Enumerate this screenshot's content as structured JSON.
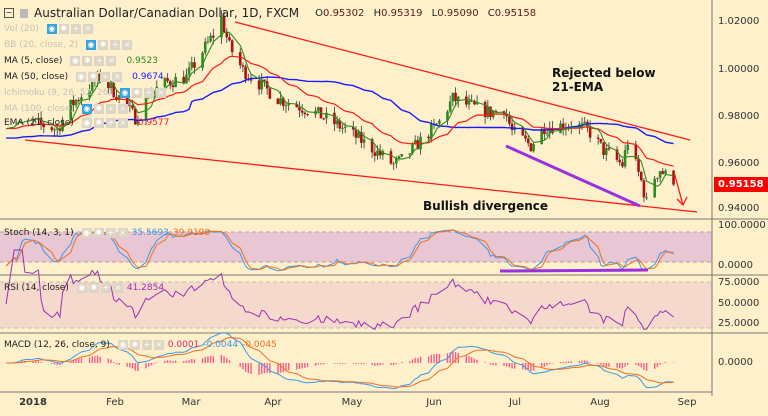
{
  "header": {
    "symbol": "Australian Dollar/Canadian Dollar, 1D, FXCM",
    "open": "0.95302",
    "high": "0.95319",
    "low": "0.95090",
    "close": "0.95158",
    "o_label": "O",
    "h_label": "H",
    "l_label": "L",
    "c_label": "C"
  },
  "legend": [
    {
      "label": "Vol (20)",
      "value": "",
      "faded": true
    },
    {
      "label": "BB (20, close, 2)",
      "value": "",
      "faded": true
    },
    {
      "label": "MA (5, close)",
      "value": "0.9523",
      "color": "#2e8b1e"
    },
    {
      "label": "MA (50, close)",
      "value": "0.9674",
      "color": "#1a1aff"
    },
    {
      "label": "Ichimoku (9, 26, 52, 26)",
      "value": "",
      "faded": true
    },
    {
      "label": "MA (100, close)",
      "value": "",
      "faded": true
    },
    {
      "label": "EMA (21, close)",
      "value": "0.9577",
      "color": "#ff1a1a"
    }
  ],
  "indicators": {
    "stoch": {
      "label": "Stoch (14, 3, 1)",
      "k": "35.5693",
      "d": "39.0190",
      "axis": [
        "100.0000",
        "0.0000"
      ]
    },
    "rsi": {
      "label": "RSI (14, close)",
      "value": "41.2854",
      "axis": [
        "75.0000",
        "50.0000",
        "25.0000"
      ]
    },
    "macd": {
      "label": "MACD (12, 26, close, 9)",
      "hist": "0.0001",
      "macd": "-0.0044",
      "signal": "-0.0045",
      "axis": [
        "0.0000"
      ]
    }
  },
  "annotations": {
    "rejected": "Rejected below",
    "ema": "21-EMA",
    "bullish": "Bullish divergence"
  },
  "price_axis": [
    "1.02000",
    "1.00000",
    "0.98000",
    "0.96000",
    "0.94000"
  ],
  "last_price": "0.95158",
  "x_axis": [
    "2018",
    "Feb",
    "Mar",
    "Apr",
    "May",
    "Jun",
    "Jul",
    "Aug",
    "Sep"
  ],
  "colors": {
    "up": "#2e8b1e",
    "down": "#b01010",
    "ma5": "#2e8b1e",
    "ma50": "#1a1aff",
    "ema21": "#ff1a1a",
    "trend": "#ff1a1a",
    "divergence": "#9b30e0"
  },
  "chart_data": {
    "type": "candlestick",
    "title": "Australian Dollar/Canadian Dollar, 1D, FXCM",
    "ylim": [
      0.935,
      1.028
    ],
    "close_anchors": [
      [
        "2018-01-01",
        0.978
      ],
      [
        "2018-01-10",
        0.975
      ],
      [
        "2018-01-15",
        0.985
      ],
      [
        "2018-01-22",
        0.993
      ],
      [
        "2018-01-26",
        0.997
      ],
      [
        "2018-02-01",
        0.99
      ],
      [
        "2018-02-08",
        0.98
      ],
      [
        "2018-02-13",
        0.99
      ],
      [
        "2018-02-20",
        0.995
      ],
      [
        "2018-02-27",
        0.997
      ],
      [
        "2018-03-05",
        1.008
      ],
      [
        "2018-03-09",
        1.015
      ],
      [
        "2018-03-12",
        1.022
      ],
      [
        "2018-03-15",
        1.01
      ],
      [
        "2018-03-20",
        1.0
      ],
      [
        "2018-04-02",
        0.988
      ],
      [
        "2018-04-16",
        0.982
      ],
      [
        "2018-04-27",
        0.975
      ],
      [
        "2018-05-07",
        0.967
      ],
      [
        "2018-05-15",
        0.96
      ],
      [
        "2018-05-18",
        0.962
      ],
      [
        "2018-05-25",
        0.97
      ],
      [
        "2018-06-01",
        0.978
      ],
      [
        "2018-06-06",
        0.988
      ],
      [
        "2018-06-12",
        0.985
      ],
      [
        "2018-06-20",
        0.982
      ],
      [
        "2018-06-25",
        0.984
      ],
      [
        "2018-06-28",
        0.974
      ],
      [
        "2018-07-05",
        0.968
      ],
      [
        "2018-07-10",
        0.976
      ],
      [
        "2018-07-20",
        0.977
      ],
      [
        "2018-07-26",
        0.975
      ],
      [
        "2018-08-01",
        0.966
      ],
      [
        "2018-08-08",
        0.96
      ],
      [
        "2018-08-10",
        0.97
      ],
      [
        "2018-08-15",
        0.953
      ],
      [
        "2018-08-17",
        0.944
      ],
      [
        "2018-08-20",
        0.955
      ],
      [
        "2018-08-22",
        0.958
      ],
      [
        "2018-08-27",
        0.9516
      ]
    ]
  }
}
